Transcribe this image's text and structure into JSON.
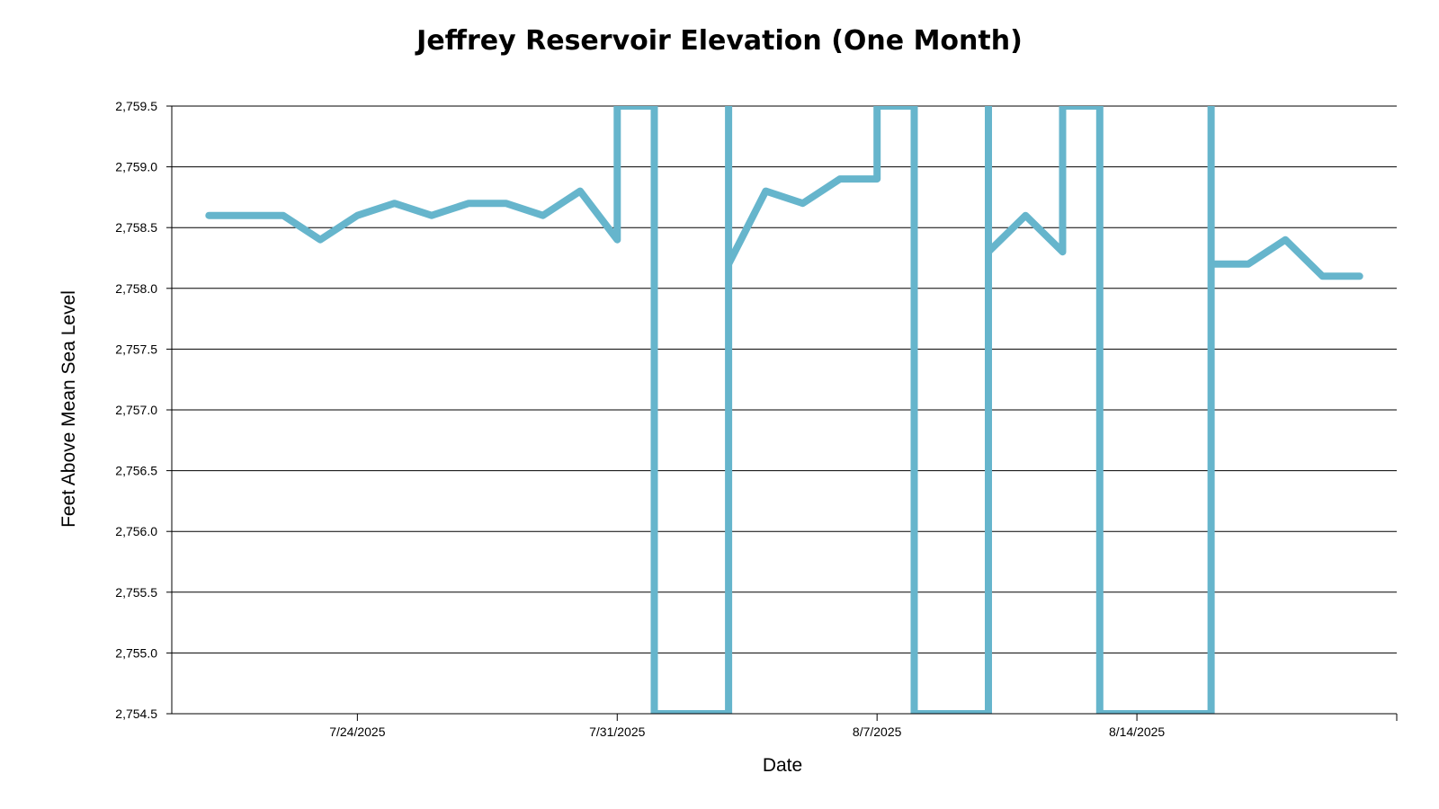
{
  "chart_data": {
    "type": "line",
    "title": "Jeffrey Reservoir Elevation (One Month)",
    "xlabel": "Date",
    "ylabel": "Feet Above Mean Sea Level",
    "ylim": [
      2754.5,
      2759.5
    ],
    "yticks": [
      "2,754.5",
      "2,755.0",
      "2,755.5",
      "2,756.0",
      "2,756.5",
      "2,757.0",
      "2,757.5",
      "2,758.0",
      "2,758.5",
      "2,759.0",
      "2,759.5"
    ],
    "xlim": [
      "2025-07-19",
      "2025-08-21"
    ],
    "xticks": [
      {
        "date": "2025-07-24",
        "label": "7/24/2025"
      },
      {
        "date": "2025-07-31",
        "label": "7/31/2025"
      },
      {
        "date": "2025-08-07",
        "label": "8/7/2025"
      },
      {
        "date": "2025-08-14",
        "label": "8/14/2025"
      }
    ],
    "grid": true,
    "legend": "none",
    "line_color": "#66b5cc",
    "series": [
      {
        "x": [
          "2025-07-20",
          "2025-07-21",
          "2025-07-22",
          "2025-07-23",
          "2025-07-24",
          "2025-07-25",
          "2025-07-26",
          "2025-07-27",
          "2025-07-28",
          "2025-07-29",
          "2025-07-30",
          "2025-07-31",
          "2025-07-31",
          "2025-08-01",
          "2025-08-01",
          "2025-08-02",
          "2025-08-03",
          "2025-08-03",
          "2025-08-03",
          "2025-08-04",
          "2025-08-05",
          "2025-08-06",
          "2025-08-07",
          "2025-08-07",
          "2025-08-08",
          "2025-08-08",
          "2025-08-09",
          "2025-08-10",
          "2025-08-10",
          "2025-08-10",
          "2025-08-11",
          "2025-08-12",
          "2025-08-12",
          "2025-08-12",
          "2025-08-13",
          "2025-08-13",
          "2025-08-15",
          "2025-08-16",
          "2025-08-16",
          "2025-08-16",
          "2025-08-17",
          "2025-08-18",
          "2025-08-19",
          "2025-08-20"
        ],
        "y": [
          2758.6,
          2758.6,
          2758.6,
          2758.4,
          2758.6,
          2758.7,
          2758.6,
          2758.7,
          2758.7,
          2758.6,
          2758.8,
          2758.4,
          2759.5,
          2759.5,
          2754.5,
          2754.5,
          2754.5,
          2759.5,
          2758.2,
          2758.8,
          2758.7,
          2758.9,
          2758.9,
          2759.5,
          2759.5,
          2754.5,
          2754.5,
          2754.5,
          2759.5,
          2758.3,
          2758.6,
          2758.3,
          2759.5,
          2759.5,
          2759.5,
          2754.5,
          2754.5,
          2754.5,
          2759.5,
          2758.2,
          2758.2,
          2758.4,
          2758.1,
          2758.1
        ]
      }
    ]
  }
}
